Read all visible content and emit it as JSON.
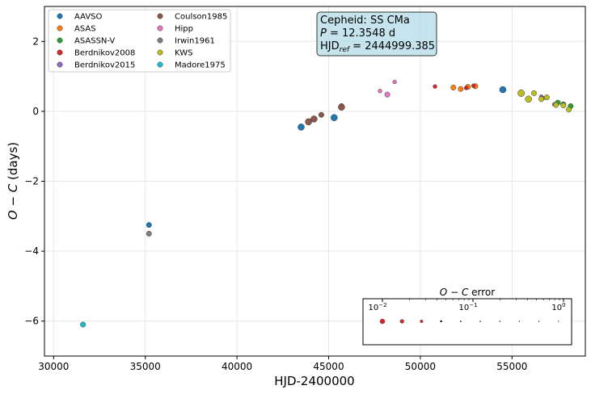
{
  "chart_data": {
    "type": "scatter",
    "xlabel": "HJD-2400000",
    "ylabel": "O − C (days)",
    "xlim": [
      29500,
      59000
    ],
    "ylim": [
      -7,
      3
    ],
    "xticks": [
      30000,
      35000,
      40000,
      45000,
      50000,
      55000
    ],
    "yticks": [
      -6,
      -4,
      -2,
      0,
      2
    ],
    "grid": true,
    "legend_placement": "top-left",
    "info_box": {
      "line1": "Cepheid: SS CMa",
      "line2_prefix": "P",
      "line2_rest": " = 12.3548 d",
      "line3_prefix": "HJD",
      "line3_sub": "ref",
      "line3_rest": " = 2444999.385"
    },
    "error_legend": {
      "title": "O − C error",
      "ticks": [
        "10",
        "10",
        "10"
      ],
      "exponents": [
        "−2",
        "−1",
        "0"
      ]
    },
    "series": [
      {
        "name": "AAVSO",
        "color": "#1f77b4",
        "points": [
          [
            35200,
            -3.25,
            0.02
          ],
          [
            43500,
            -0.45,
            0.03
          ],
          [
            45300,
            -0.18,
            0.03
          ],
          [
            54500,
            0.62,
            0.03
          ]
        ]
      },
      {
        "name": "ASAS",
        "color": "#ff7f0e",
        "points": [
          [
            51800,
            0.68,
            0.02
          ],
          [
            52200,
            0.64,
            0.02
          ],
          [
            52600,
            0.7,
            0.02
          ],
          [
            53000,
            0.72,
            0.02
          ]
        ]
      },
      {
        "name": "ASASSN-V",
        "color": "#2ca02c",
        "points": [
          [
            57500,
            0.25,
            0.02
          ],
          [
            57800,
            0.2,
            0.02
          ],
          [
            58200,
            0.15,
            0.02
          ]
        ]
      },
      {
        "name": "Berdnikov2008",
        "color": "#d62728",
        "points": [
          [
            45700,
            0.15,
            0.02
          ],
          [
            50800,
            0.71,
            0.01
          ],
          [
            52500,
            0.67,
            0.01
          ],
          [
            52900,
            0.73,
            0.01
          ]
        ]
      },
      {
        "name": "Berdnikov2015",
        "color": "#9467bd",
        "points": [
          [
            56600,
            0.42,
            0.01
          ],
          [
            57300,
            0.2,
            0.01
          ]
        ]
      },
      {
        "name": "Coulson1985",
        "color": "#8c564b",
        "points": [
          [
            43900,
            -0.3,
            0.03
          ],
          [
            44200,
            -0.22,
            0.03
          ],
          [
            44600,
            -0.1,
            0.02
          ],
          [
            45700,
            0.12,
            0.03
          ]
        ]
      },
      {
        "name": "Hipp",
        "color": "#e377c2",
        "points": [
          [
            47800,
            0.58,
            0.01
          ],
          [
            48200,
            0.48,
            0.02
          ],
          [
            48600,
            0.84,
            0.01
          ]
        ]
      },
      {
        "name": "Irwin1961",
        "color": "#7f7f7f",
        "points": [
          [
            35200,
            -3.5,
            0.02
          ],
          [
            56700,
            0.38,
            0.01
          ]
        ]
      },
      {
        "name": "KWS",
        "color": "#bcbd22",
        "points": [
          [
            55500,
            0.52,
            0.04
          ],
          [
            55900,
            0.35,
            0.03
          ],
          [
            56200,
            0.52,
            0.02
          ],
          [
            56600,
            0.35,
            0.02
          ],
          [
            56900,
            0.4,
            0.02
          ],
          [
            57400,
            0.18,
            0.02
          ],
          [
            57800,
            0.17,
            0.02
          ],
          [
            58100,
            0.05,
            0.02
          ]
        ]
      },
      {
        "name": "Madore1975",
        "color": "#17becf",
        "points": [
          [
            31600,
            -6.1,
            0.02
          ]
        ]
      }
    ]
  }
}
